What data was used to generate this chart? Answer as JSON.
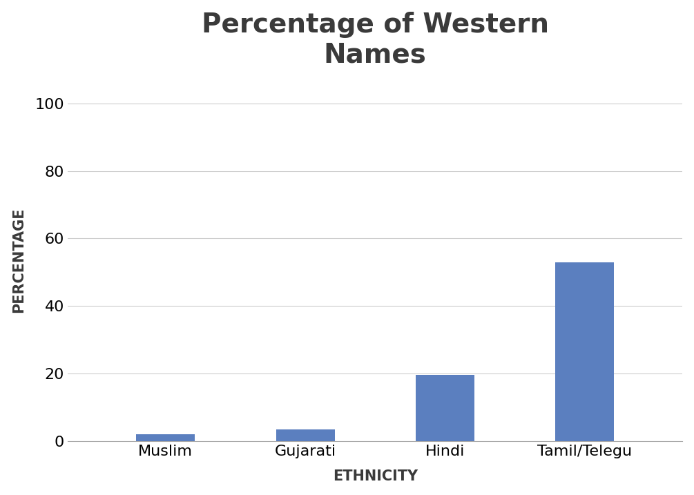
{
  "title": "Percentage of Western\nNames",
  "categories": [
    "Muslim",
    "Gujarati",
    "Hindi",
    "Tamil/Telegu"
  ],
  "values": [
    2.0,
    3.5,
    19.5,
    53.0
  ],
  "bar_color": "#5b7fbf",
  "xlabel": "ETHNICITY",
  "ylabel": "PERCENTAGE",
  "ylim": [
    0,
    107
  ],
  "yticks": [
    0,
    20,
    40,
    60,
    80,
    100
  ],
  "title_fontsize": 28,
  "axis_label_fontsize": 15,
  "tick_label_fontsize": 16,
  "xtick_fontsize": 16,
  "bar_width": 0.42,
  "background_color": "#ffffff",
  "grid_color": "#cccccc",
  "text_color": "#3a3a3a",
  "xlim_left": -0.7,
  "xlim_right": 3.7
}
